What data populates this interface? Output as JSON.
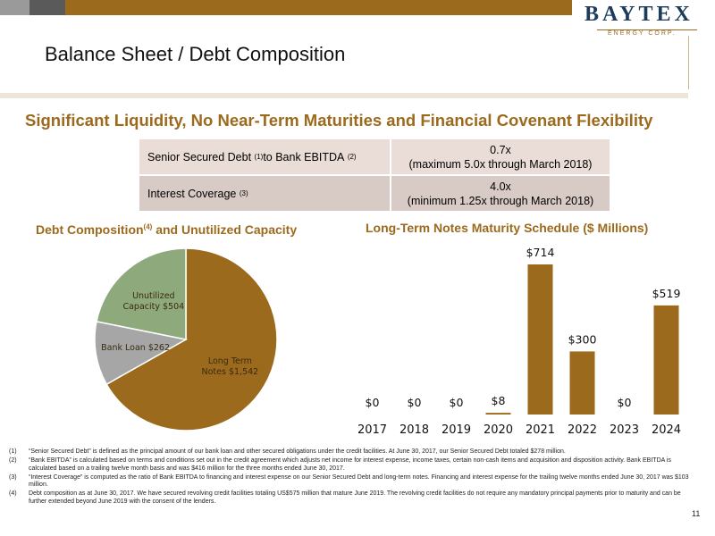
{
  "header": {
    "logo_main": "BAYTEX",
    "logo_sub": "ENERGY CORP.",
    "title": "Balance Sheet / Debt Composition"
  },
  "headline": "Significant Liquidity, No Near-Term Maturities and Financial Covenant Flexibility",
  "metrics": [
    {
      "label": "Senior Secured Debt",
      "sup1": "(1)",
      "label_mid": " to Bank EBITDA",
      "sup2": "(2)",
      "value": "0.7x",
      "note": "(maximum 5.0x through March 2018)"
    },
    {
      "label": "Interest Coverage",
      "sup1": "(3)",
      "value": "4.0x",
      "note": "(minimum 1.25x through March 2018)"
    }
  ],
  "pie_section": {
    "title_a": "Debt Composition",
    "title_sup": "(4)",
    "title_b": " and Unutilized Capacity"
  },
  "bar_section": {
    "title": "Long-Term Notes Maturity Schedule ($ Millions)"
  },
  "colors": {
    "gold": "#9c6a1c",
    "pie_green": "#8eaa7c",
    "pie_grey": "#a6a6a6",
    "navy": "#1d3c5c"
  },
  "chart_data": [
    {
      "type": "pie",
      "title": "Debt Composition(4) and Unutilized Capacity",
      "slices": [
        {
          "label_line1": "Long Term",
          "label_line2": "Notes $1,542",
          "value": 1542,
          "color": "#9c6a1c"
        },
        {
          "label_line1": "Bank Loan $262",
          "label_line2": "",
          "value": 262,
          "color": "#a6a6a6"
        },
        {
          "label_line1": "Unutilized",
          "label_line2": "Capacity $504",
          "value": 504,
          "color": "#8eaa7c"
        }
      ]
    },
    {
      "type": "bar",
      "title": "Long-Term Notes Maturity Schedule ($ Millions)",
      "categories": [
        "2017",
        "2018",
        "2019",
        "2020",
        "2021",
        "2022",
        "2023",
        "2024"
      ],
      "values": [
        0,
        0,
        0,
        8,
        714,
        300,
        0,
        519
      ],
      "data_labels": [
        "$0",
        "$0",
        "$0",
        "$8",
        "$714",
        "$300",
        "$0",
        "$519"
      ],
      "ylim": [
        0,
        714
      ],
      "color": "#9c6a1c"
    }
  ],
  "footnotes": [
    {
      "num": "(1)",
      "text": "“Senior Secured Debt” is defined as the principal amount of our bank loan and other secured obligations under the credit facilities. At June 30, 2017, our Senior Secured Debt totaled $278 million."
    },
    {
      "num": "(2)",
      "text": "“Bank EBITDA” is calculated based on terms and conditions set out in the credit agreement which adjusts net income for interest expense, income taxes, certain non-cash items and acquisition and disposition activity. Bank EBITDA is calculated based on a trailing twelve month basis and was $416 million for the three months ended June 30, 2017."
    },
    {
      "num": "(3)",
      "text": "“Interest Coverage” is computed as the ratio of Bank EBITDA to financing and interest expense on our Senior Secured Debt and long-term notes. Financing and interest expense for the trailing twelve months ended June 30, 2017 was $103 million."
    },
    {
      "num": "(4)",
      "text": "Debt composition as at June 30, 2017. We have secured revolving credit facilities totaling US$575 million that mature June 2019. The revolving credit facilities do not require any mandatory principal payments prior to maturity and can be further extended beyond June 2019 with the consent of the lenders."
    }
  ],
  "page_number": "11"
}
